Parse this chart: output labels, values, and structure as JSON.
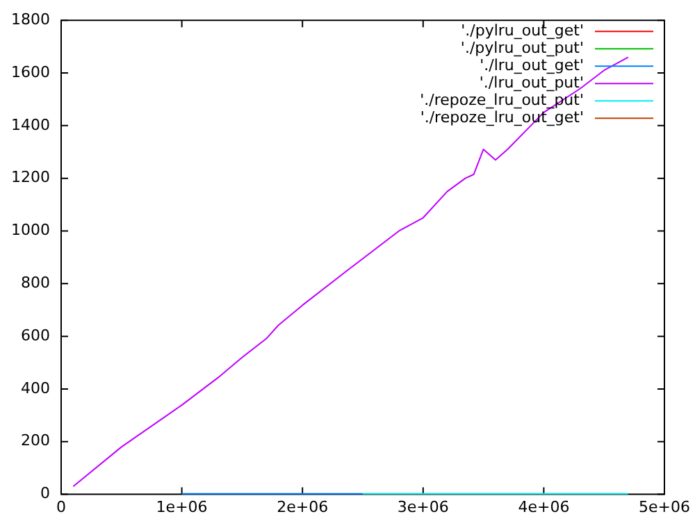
{
  "chart_data": {
    "type": "line",
    "legend": "top right",
    "grid": false,
    "marker": "none",
    "line_style": "solid",
    "xlim": [
      0,
      5000000
    ],
    "ylim": [
      0,
      1800
    ],
    "xticks": [
      0,
      {
        "value": 1000000,
        "label": "1e+06"
      },
      {
        "value": 2000000,
        "label": "2e+06"
      },
      {
        "value": 3000000,
        "label": "3e+06"
      },
      {
        "value": 4000000,
        "label": "4e+06"
      },
      {
        "value": 5000000,
        "label": "5e+06"
      }
    ],
    "yticks": [
      0,
      200,
      400,
      600,
      800,
      1000,
      1200,
      1400,
      1600,
      1800
    ],
    "series": [
      {
        "name": "'./pylru_out_get'",
        "color": "#ff0000"
      },
      {
        "name": "'./pylru_out_put'",
        "color": "#00c000"
      },
      {
        "name": "'./lru_out_get'",
        "color": "#0080ff",
        "x": [
          1000000,
          2500000
        ],
        "values": [
          2,
          2
        ]
      },
      {
        "name": "'./lru_out_put'",
        "color": "#c000ff",
        "x": [
          100000,
          500000,
          1000000,
          1300000,
          1500000,
          1700000,
          1800000,
          2000000,
          2400000,
          2800000,
          3000000,
          3200000,
          3350000,
          3420000,
          3500000,
          3600000,
          3700000,
          4000000,
          4300000,
          4500000,
          4700000
        ],
        "values": [
          30,
          180,
          339,
          443,
          520,
          591,
          642,
          718,
          860,
          1000,
          1050,
          1150,
          1200,
          1215,
          1310,
          1270,
          1310,
          1450,
          1540,
          1610,
          1660
        ]
      },
      {
        "name": "'./repoze_lru_out_put'",
        "color": "#00eeee",
        "x": [
          2500000,
          4700000
        ],
        "values": [
          2,
          2
        ]
      },
      {
        "name": "'./repoze_lru_out_get'",
        "color": "#c04000"
      }
    ]
  }
}
